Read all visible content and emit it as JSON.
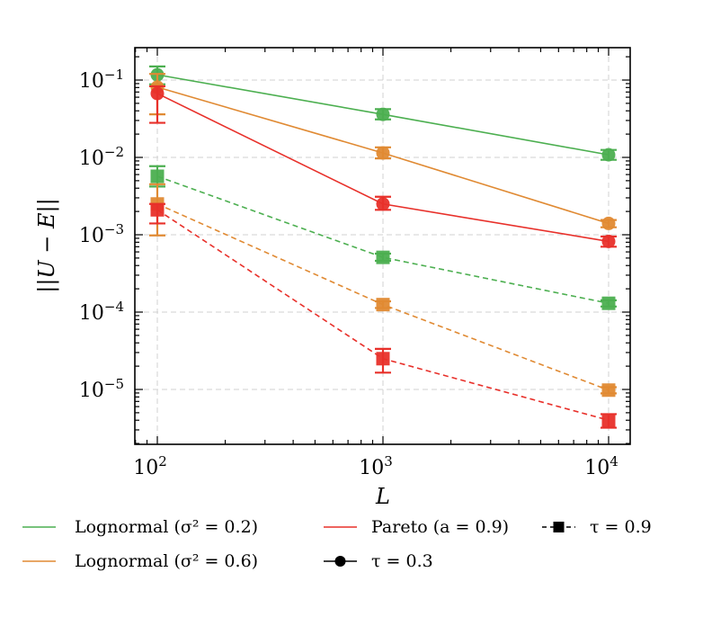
{
  "chart_data": {
    "type": "line",
    "title": "",
    "xlabel": "L",
    "ylabel": "||U − E||",
    "xscale": "log",
    "yscale": "log",
    "xlim": [
      80,
      12500
    ],
    "ylim": [
      2.2e-06,
      0.28
    ],
    "grid": true,
    "x": [
      100,
      1000,
      10000
    ],
    "x_ticks": [
      {
        "value": 100,
        "base": "10",
        "exp": "2"
      },
      {
        "value": 1000,
        "base": "10",
        "exp": "3"
      },
      {
        "value": 10000,
        "base": "10",
        "exp": "4"
      }
    ],
    "y_ticks": [
      {
        "value": 0.1,
        "base": "10",
        "exp": "−1"
      },
      {
        "value": 0.01,
        "base": "10",
        "exp": "−2"
      },
      {
        "value": 0.001,
        "base": "10",
        "exp": "−3"
      },
      {
        "value": 0.0001,
        "base": "10",
        "exp": "−4"
      },
      {
        "value": 1e-05,
        "base": "10",
        "exp": "−5"
      }
    ],
    "series": [
      {
        "name": "Lognormal (σ² = 0.2), τ = 0.3",
        "color": "#4caf50",
        "marker": "circle",
        "linestyle": "solid",
        "values": [
          0.117,
          0.036,
          0.0108
        ],
        "err_low": [
          0.088,
          0.031,
          0.0093
        ],
        "err_high": [
          0.15,
          0.042,
          0.0125
        ]
      },
      {
        "name": "Lognormal (σ² = 0.6), τ = 0.3",
        "color": "#e08a33",
        "marker": "circle",
        "linestyle": "solid",
        "values": [
          0.081,
          0.0114,
          0.0014
        ],
        "err_low": [
          0.036,
          0.0097,
          0.00125
        ],
        "err_high": [
          0.12,
          0.0135,
          0.00155
        ]
      },
      {
        "name": "Pareto (a = 0.9), τ = 0.3",
        "color": "#e8302a",
        "marker": "circle",
        "linestyle": "solid",
        "values": [
          0.067,
          0.0025,
          0.00082
        ],
        "err_low": [
          0.028,
          0.0021,
          0.0007
        ],
        "err_high": [
          0.083,
          0.0031,
          0.00095
        ]
      },
      {
        "name": "Lognormal (σ² = 0.2), τ = 0.9",
        "color": "#4caf50",
        "marker": "square",
        "linestyle": "dashed",
        "values": [
          0.0057,
          0.00051,
          0.00013
        ],
        "err_low": [
          0.0042,
          0.00046,
          0.000118
        ],
        "err_high": [
          0.0077,
          0.00057,
          0.000142
        ]
      },
      {
        "name": "Lognormal (σ² = 0.6), τ = 0.9",
        "color": "#e08a33",
        "marker": "square",
        "linestyle": "dashed",
        "values": [
          0.0025,
          0.000125,
          9.8e-06
        ],
        "err_low": [
          0.00098,
          0.000113,
          8.9e-06
        ],
        "err_high": [
          0.0045,
          0.000138,
          1.07e-05
        ]
      },
      {
        "name": "Pareto (a = 0.9), τ = 0.9",
        "color": "#e8302a",
        "marker": "square",
        "linestyle": "dashed",
        "values": [
          0.0021,
          2.5e-05,
          4e-06
        ],
        "err_low": [
          0.0014,
          1.65e-05,
          3.2e-06
        ],
        "err_high": [
          0.0025,
          3.35e-05,
          4.8e-06
        ]
      }
    ],
    "legend": {
      "placement": "bottom-outside",
      "entries": [
        {
          "label": "Lognormal (σ² = 0.2)",
          "color": "#4caf50",
          "style": "line"
        },
        {
          "label": "Lognormal (σ² = 0.6)",
          "color": "#e08a33",
          "style": "line"
        },
        {
          "label": "Pareto (a = 0.9)",
          "color": "#e8302a",
          "style": "line"
        },
        {
          "label": "τ = 0.3",
          "color": "#000000",
          "style": "solid-circle"
        },
        {
          "label": "τ = 0.9",
          "color": "#000000",
          "style": "dashed-square"
        }
      ]
    }
  }
}
